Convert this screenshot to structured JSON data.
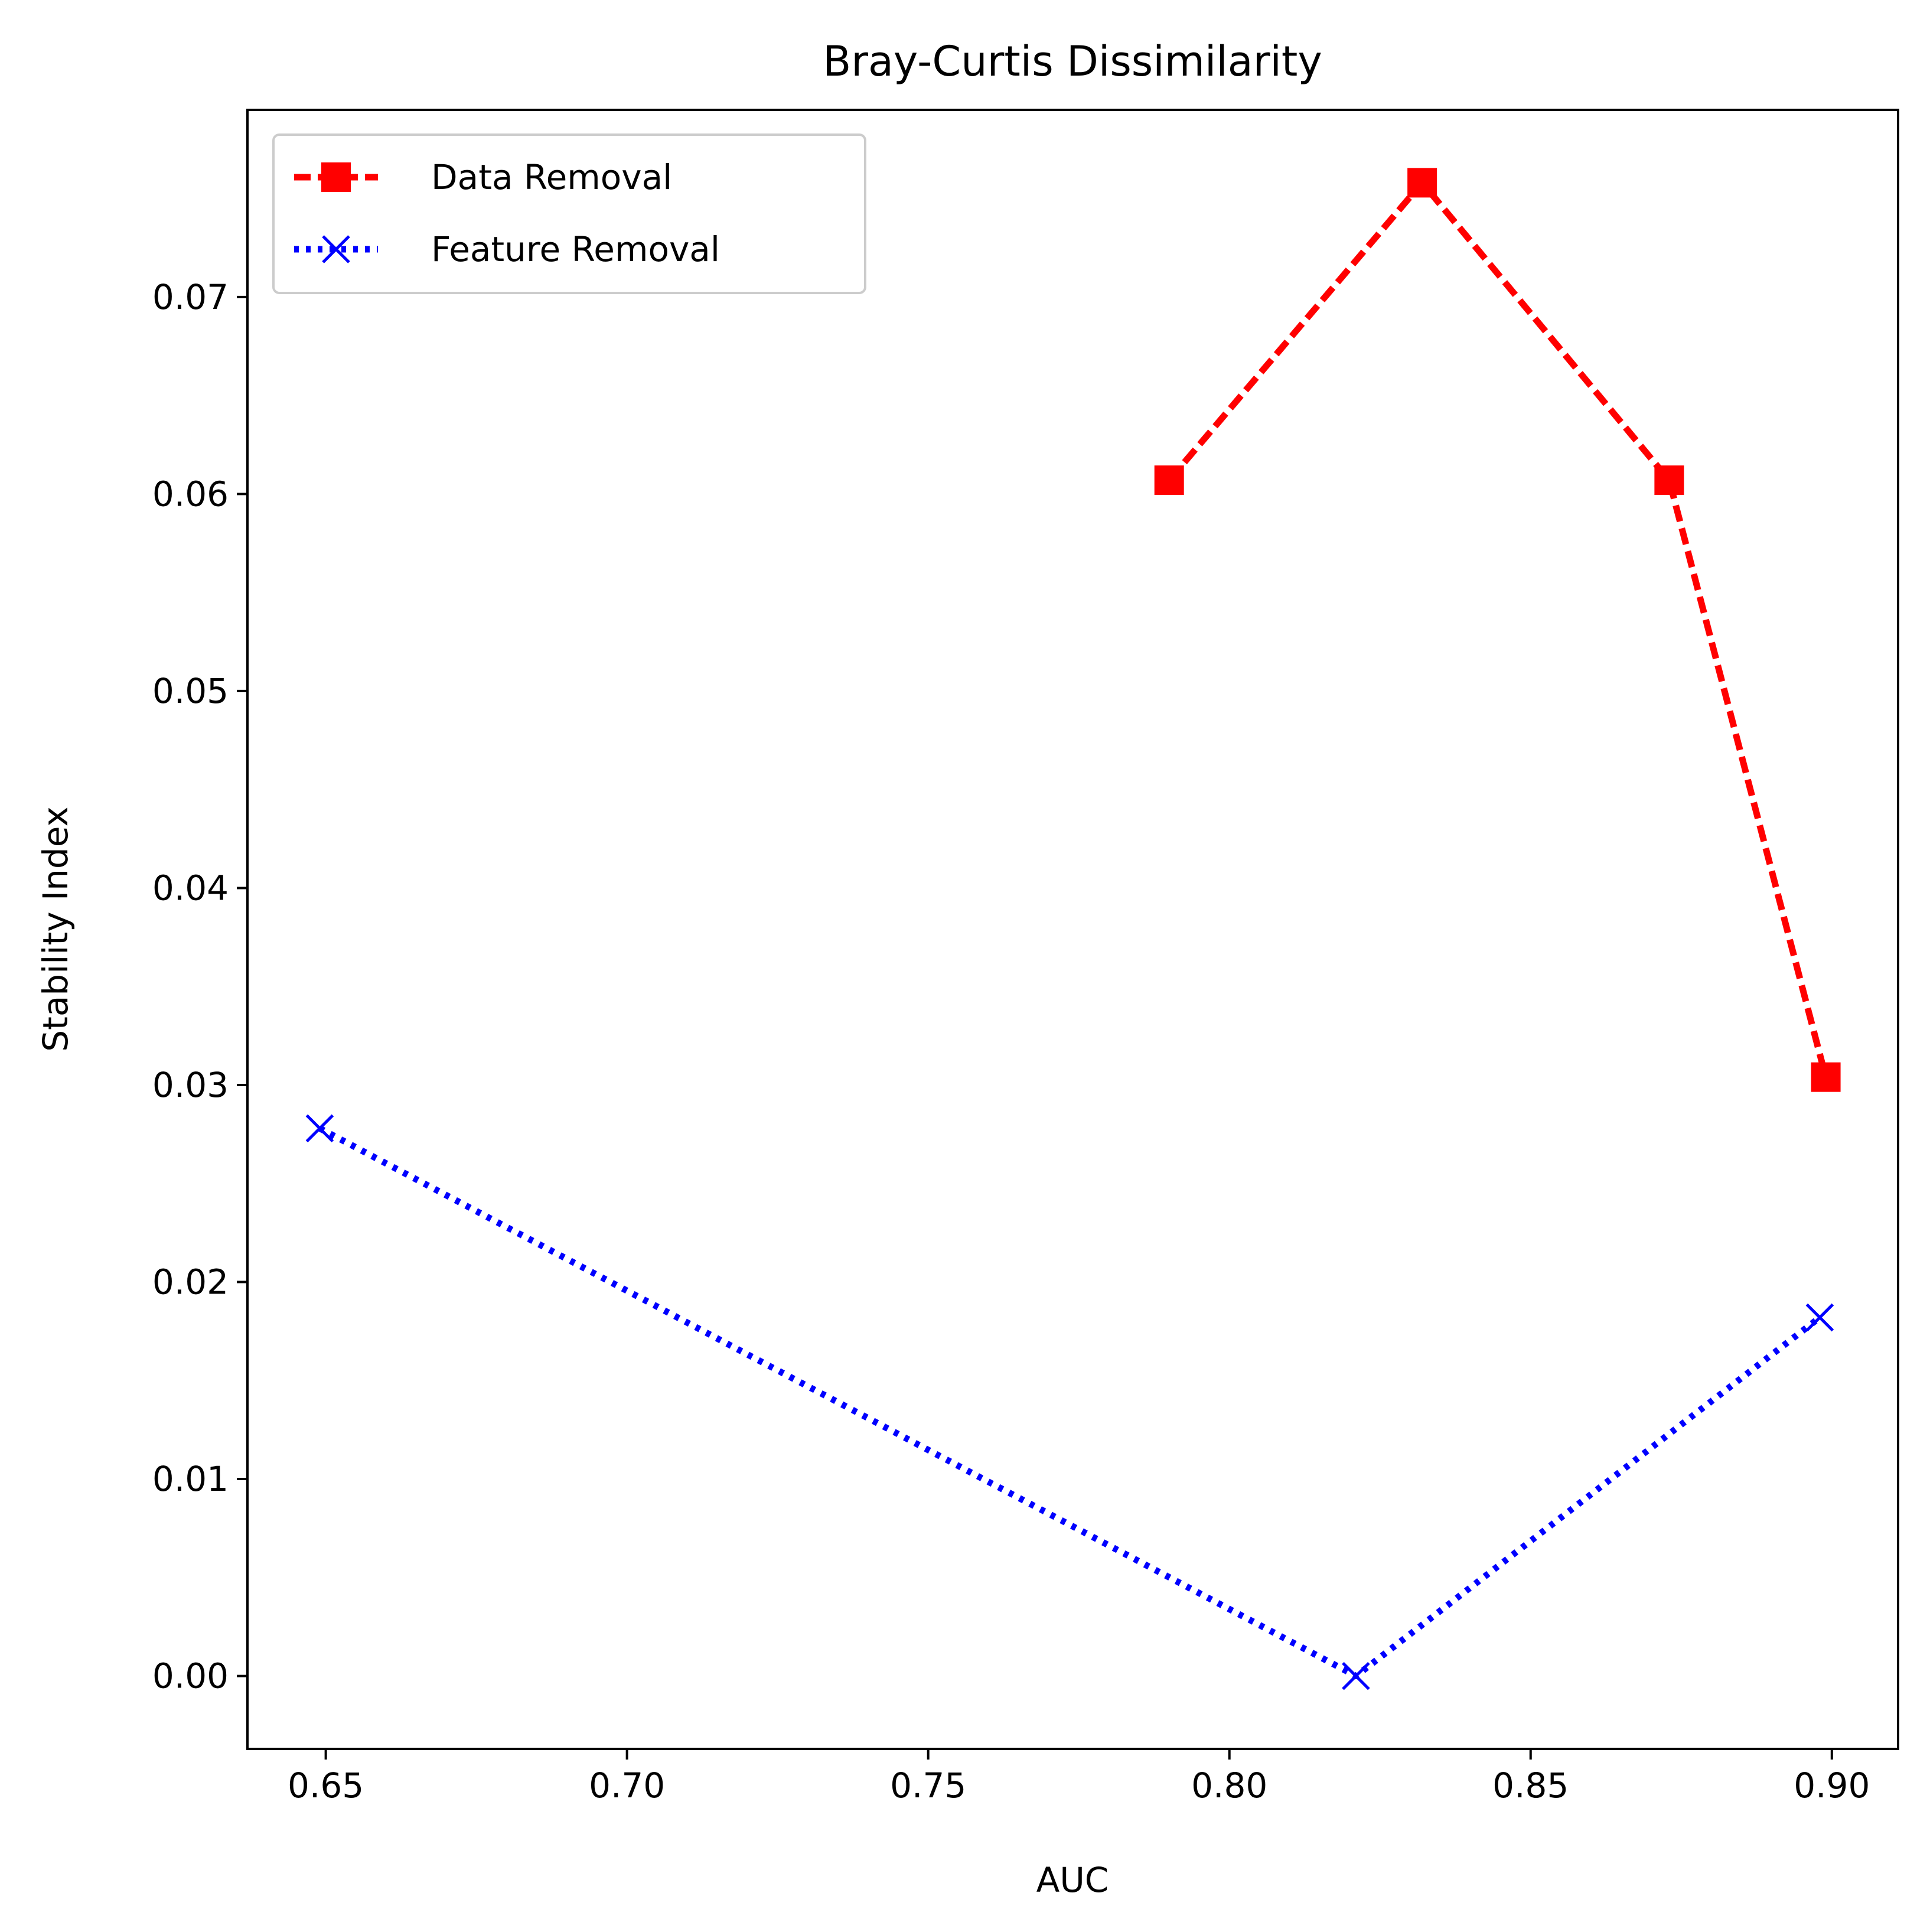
{
  "chart_data": {
    "type": "line",
    "title": "Bray-Curtis Dissimilarity",
    "xlabel": "AUC",
    "ylabel": "Stability Index",
    "xlim": [
      0.637,
      0.911
    ],
    "ylim": [
      -0.0037,
      0.0795
    ],
    "xticks": [
      0.65,
      0.7,
      0.75,
      0.8,
      0.85,
      0.9
    ],
    "xtick_labels": [
      "0.65",
      "0.70",
      "0.75",
      "0.80",
      "0.85",
      "0.90"
    ],
    "yticks": [
      0.0,
      0.01,
      0.02,
      0.03,
      0.04,
      0.05,
      0.06,
      0.07
    ],
    "ytick_labels": [
      "0.00",
      "0.01",
      "0.02",
      "0.03",
      "0.04",
      "0.05",
      "0.06",
      "0.07"
    ],
    "grid": false,
    "legend_position": "upper-left",
    "series": [
      {
        "name": "Data Removal",
        "color": "#ff0000",
        "line_style": "dashed",
        "marker": "square",
        "x": [
          0.79,
          0.832,
          0.873,
          0.899
        ],
        "y": [
          0.0607,
          0.0758,
          0.0607,
          0.0304
        ]
      },
      {
        "name": "Feature Removal",
        "color": "#0000ff",
        "line_style": "dotted",
        "marker": "x",
        "x": [
          0.649,
          0.821,
          0.898
        ],
        "y": [
          0.0278,
          0.0,
          0.0182
        ]
      }
    ]
  }
}
